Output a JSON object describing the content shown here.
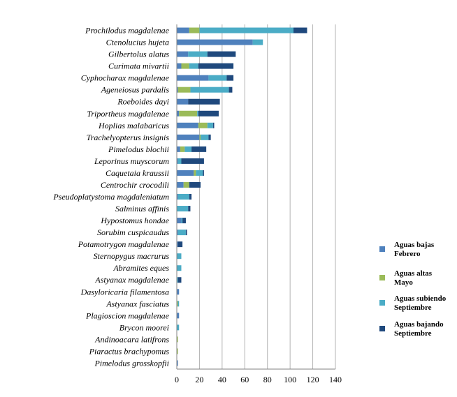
{
  "chart_data": {
    "type": "bar",
    "orientation": "horizontal",
    "stacked": true,
    "title": "",
    "xlabel": "",
    "ylabel": "",
    "xlim": [
      0,
      140
    ],
    "xticks": [
      "0",
      "20",
      "40",
      "60",
      "80",
      "100",
      "120",
      "140"
    ],
    "grid": true,
    "legend_position": "right",
    "categories": [
      "Prochilodus  magdalenae",
      "Ctenolucius hujeta",
      "Gilbertolus  alatus",
      "Curimata mivartii",
      "Cyphocharax magdalenae",
      "Ageneiosus pardalis",
      "Roeboides dayi",
      "Triportheus magdalenae",
      "Hoplias malabaricus",
      "Trachelyopterus insignis",
      "Pimelodus blochii",
      "Leporinus muyscorum",
      "Caquetaia kraussii",
      "Centrochir crocodili",
      "Pseudoplatystoma magdaleniatum",
      "Salminus affinis",
      "Hypostomus hondae",
      "Sorubim cuspicaudus",
      "Potamotrygon magdalenae",
      "Sternopygus macrurus",
      "Abramites eques",
      "Astyanax magdalenae",
      "Dasyloricaria filamentosa",
      "Astyanax fasciatus",
      "Plagioscion magdalenae",
      "Brycon moorei",
      "Andinoacara latifrons",
      "Piaractus brachypomus",
      "Pimelodus grosskopfii"
    ],
    "series": [
      {
        "name": "Aguas bajas Febrero",
        "legend_lines": [
          "Aguas bajas",
          "Febrero"
        ],
        "color": "#4f81bd",
        "values": [
          11,
          67,
          10,
          4,
          28,
          1,
          10,
          2,
          19,
          20,
          3,
          1,
          15,
          6,
          1,
          0,
          4,
          1,
          1,
          0,
          0,
          0,
          2,
          0,
          2,
          0,
          0,
          0,
          1
        ]
      },
      {
        "name": "Aguas altas Mayo",
        "legend_lines": [
          "Aguas altas",
          "Mayo"
        ],
        "color": "#9bbb59",
        "values": [
          9,
          0,
          0,
          7,
          0,
          11,
          0,
          16,
          8,
          1,
          4,
          0,
          2,
          5,
          0,
          0,
          0,
          0,
          0,
          0,
          0,
          0,
          0,
          1,
          0,
          0,
          1,
          1,
          0
        ]
      },
      {
        "name": "Aguas subiendo Septiembre",
        "legend_lines": [
          "Aguas subiendo",
          "Septiembre"
        ],
        "color": "#4bacc6",
        "values": [
          83,
          9,
          17,
          8,
          16,
          34,
          0,
          1,
          5,
          7,
          6,
          3,
          6,
          0,
          10,
          10,
          1,
          7,
          0,
          4,
          4,
          1,
          0,
          1,
          0,
          2,
          0,
          0,
          0
        ]
      },
      {
        "name": "Aguas bajando Septiembre",
        "legend_lines": [
          "Aguas bajando",
          "Septiembre"
        ],
        "color": "#1f497d",
        "values": [
          12,
          0,
          25,
          31,
          6,
          3,
          28,
          18,
          1,
          2,
          13,
          20,
          1,
          10,
          2,
          2,
          3,
          1,
          4,
          0,
          0,
          3,
          0,
          0,
          0,
          0,
          0,
          0,
          0
        ]
      }
    ]
  }
}
